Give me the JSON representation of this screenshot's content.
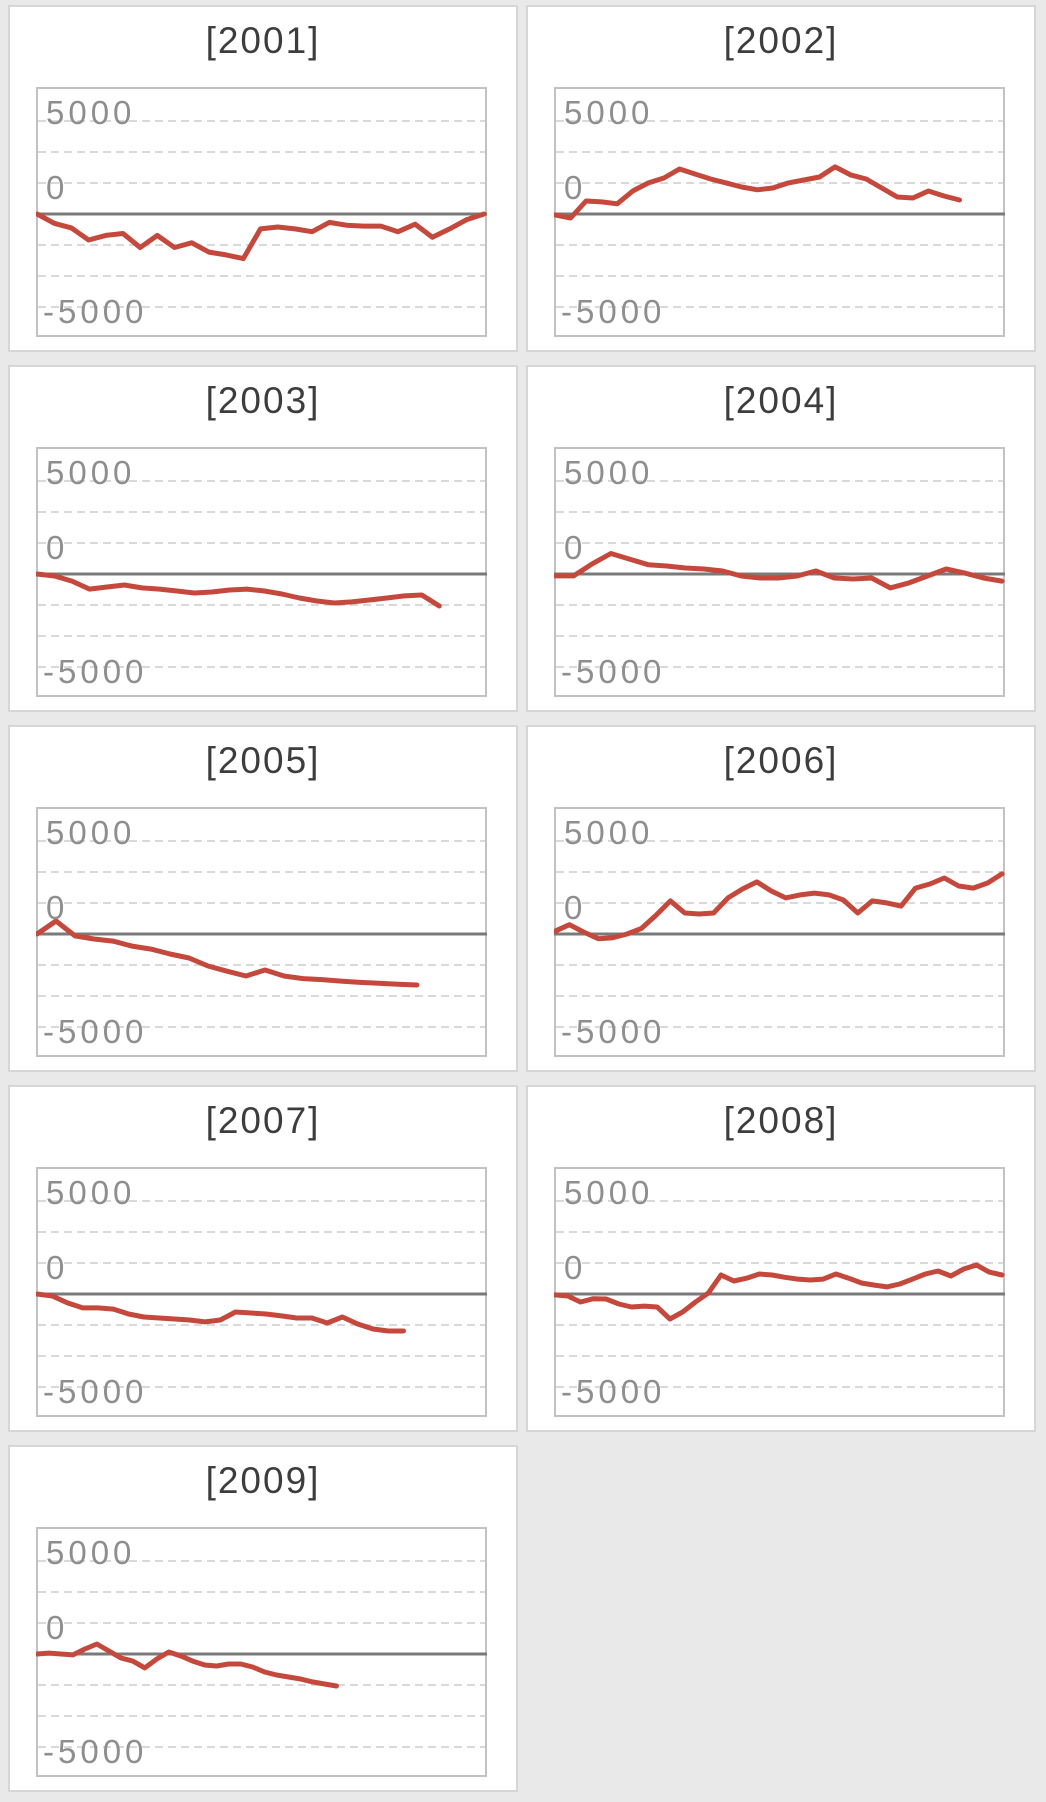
{
  "style": {
    "page_background": "#e9e9e9",
    "card_background": "#ffffff",
    "card_border": "#d6d6d6",
    "plot_frame": "#c2c2c2",
    "grid_color": "#d9d9d9",
    "zero_line_color": "#7a7a7a",
    "line_color": "#c4493c",
    "tick_label_color": "#8e8e8e",
    "title_color": "#3d3d3d"
  },
  "y_axis": {
    "tick_labels": [
      "5000",
      "0",
      "-5000"
    ],
    "tick_values": [
      5000,
      0,
      -5000
    ],
    "ylim": [
      -6600,
      6800
    ],
    "gridlines": "dashed horizontal, 2 minor lines between labeled ticks",
    "zero_line": "solid dark gray",
    "x_axis_labels": "none"
  },
  "chart_data": [
    {
      "type": "line",
      "title": "[2001]",
      "x_end_frac": 1.0,
      "values": [
        0,
        -500,
        -750,
        -1400,
        -1150,
        -1050,
        -1800,
        -1150,
        -1800,
        -1550,
        -2050,
        -2200,
        -2400,
        -800,
        -700,
        -800,
        -950,
        -450,
        -600,
        -650,
        -650,
        -950,
        -550,
        -1250,
        -800,
        -300,
        0
      ]
    },
    {
      "type": "line",
      "title": "[2002]",
      "x_end_frac": 0.905,
      "values": [
        -50,
        -215,
        700,
        650,
        550,
        1235,
        1670,
        1935,
        2420,
        2150,
        1880,
        1670,
        1450,
        1300,
        1400,
        1670,
        1830,
        1990,
        2530,
        2100,
        1880,
        1400,
        915,
        860,
        1235,
        970,
        750
      ]
    },
    {
      "type": "line",
      "title": "[2003]",
      "x_end_frac": 0.9,
      "values": [
        0,
        -110,
        -380,
        -810,
        -700,
        -590,
        -750,
        -810,
        -915,
        -1020,
        -970,
        -860,
        -810,
        -915,
        -1075,
        -1290,
        -1450,
        -1560,
        -1500,
        -1400,
        -1290,
        -1180,
        -1130,
        -1720
      ]
    },
    {
      "type": "line",
      "title": "[2004]",
      "x_end_frac": 1.0,
      "values": [
        -100,
        -100,
        550,
        1100,
        800,
        500,
        430,
        320,
        270,
        160,
        -110,
        -215,
        -215,
        -110,
        160,
        -215,
        -270,
        -215,
        -750,
        -480,
        -110,
        270,
        50,
        -215,
        -380
      ]
    },
    {
      "type": "line",
      "title": "[2005]",
      "x_end_frac": 0.85,
      "values": [
        0,
        700,
        -100,
        -270,
        -380,
        -650,
        -810,
        -1075,
        -1290,
        -1720,
        -2000,
        -2260,
        -1935,
        -2260,
        -2400,
        -2450,
        -2530,
        -2600,
        -2650,
        -2700,
        -2740
      ]
    },
    {
      "type": "line",
      "title": "[2006]",
      "x_end_frac": 1.0,
      "values": [
        150,
        500,
        100,
        -250,
        -200,
        0,
        300,
        1000,
        1780,
        1130,
        1075,
        1130,
        1940,
        2420,
        2800,
        2310,
        1940,
        2100,
        2200,
        2100,
        1830,
        1130,
        1780,
        1670,
        1500,
        2470,
        2690,
        3010,
        2580,
        2470,
        2740,
        3230
      ]
    },
    {
      "type": "line",
      "title": "[2007]",
      "x_end_frac": 0.82,
      "values": [
        0,
        -110,
        -480,
        -750,
        -750,
        -810,
        -1075,
        -1235,
        -1290,
        -1345,
        -1400,
        -1500,
        -1400,
        -970,
        -1020,
        -1075,
        -1180,
        -1290,
        -1290,
        -1560,
        -1235,
        -1615,
        -1880,
        -1990,
        -1990
      ]
    },
    {
      "type": "line",
      "title": "[2008]",
      "x_end_frac": 1.0,
      "values": [
        -50,
        -110,
        -430,
        -250,
        -270,
        -540,
        -700,
        -650,
        -700,
        -1345,
        -970,
        -430,
        50,
        1020,
        700,
        850,
        1075,
        1020,
        900,
        800,
        750,
        800,
        1075,
        850,
        590,
        480,
        380,
        540,
        800,
        1075,
        1235,
        970,
        1345,
        1560,
        1180,
        1020
      ]
    },
    {
      "type": "line",
      "title": "[2009]",
      "x_end_frac": 0.67,
      "values": [
        0,
        50,
        0,
        -50,
        270,
        540,
        160,
        -215,
        -380,
        -750,
        -270,
        110,
        -110,
        -380,
        -590,
        -645,
        -540,
        -540,
        -700,
        -970,
        -1130,
        -1235,
        -1345,
        -1500,
        -1615,
        -1720
      ]
    }
  ]
}
